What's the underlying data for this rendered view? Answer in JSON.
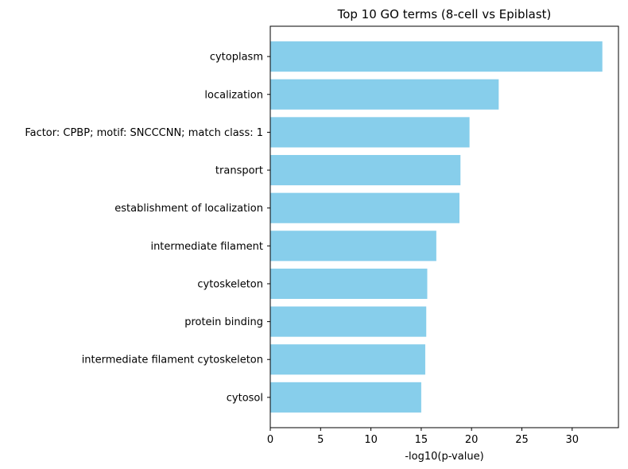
{
  "chart_data": {
    "type": "bar",
    "orientation": "horizontal",
    "title": "Top 10 GO terms (8-cell vs Epiblast)",
    "xlabel": "-log10(p-value)",
    "ylabel": "",
    "categories": [
      "cytoplasm",
      "localization",
      "Factor: CPBP; motif: SNCCCNN; match class: 1",
      "transport",
      "establishment of localization",
      "intermediate filament",
      "cytoskeleton",
      "protein binding",
      "intermediate filament cytoskeleton",
      "cytosol"
    ],
    "values": [
      33.0,
      22.7,
      19.8,
      18.9,
      18.8,
      16.5,
      15.6,
      15.5,
      15.4,
      15.0
    ],
    "xlim": [
      0,
      34.6
    ],
    "xticks": [
      0,
      5,
      10,
      15,
      20,
      25,
      30
    ],
    "bar_color": "#87CEEB",
    "grid": false,
    "legend": "none"
  }
}
